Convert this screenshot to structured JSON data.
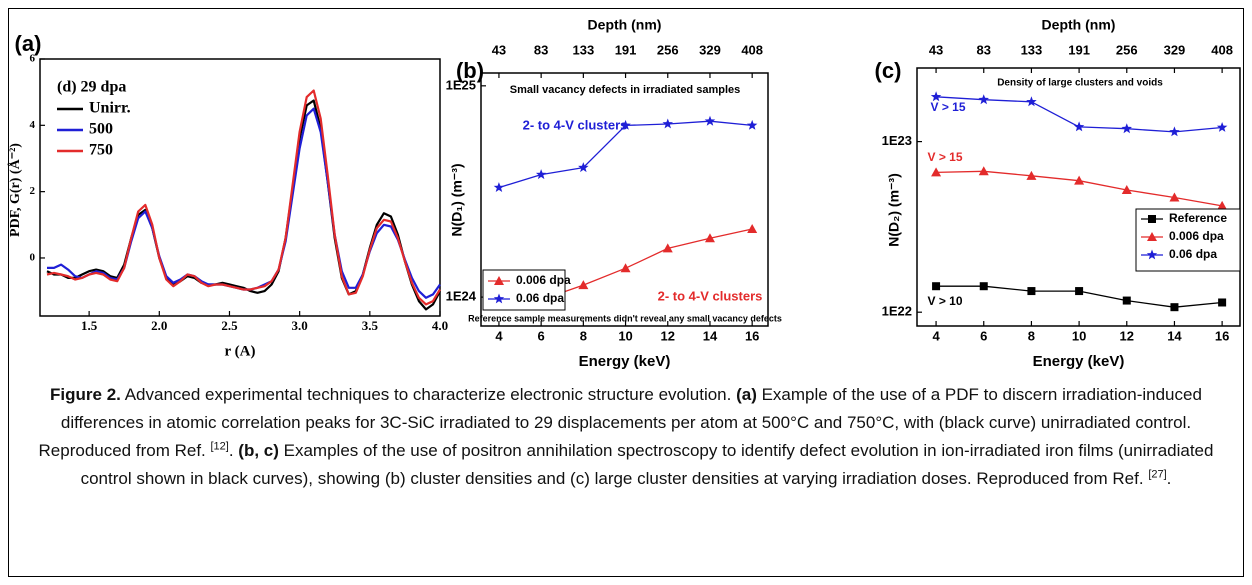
{
  "chart_data": [
    {
      "type": "line",
      "panel_label": "(a)",
      "xlabel": "r (A)",
      "ylabel": "PDF, G(r) (Å⁻²)",
      "legend_title": "(d) 29 dpa",
      "legend": "upper-left",
      "xlim": [
        1.15,
        4.0
      ],
      "ylim": [
        -1.75,
        6
      ],
      "xticks": [
        {
          "value": 1.5,
          "label": "1.5"
        },
        {
          "value": 2.0,
          "label": "2.0"
        },
        {
          "value": 2.5,
          "label": "2.5"
        },
        {
          "value": 3.0,
          "label": "3.0"
        },
        {
          "value": 3.5,
          "label": "3.5"
        },
        {
          "value": 4.0,
          "label": "4.0"
        }
      ],
      "yticks": [
        0,
        2,
        4,
        6
      ],
      "x": [
        1.2,
        1.25,
        1.3,
        1.35,
        1.4,
        1.45,
        1.5,
        1.55,
        1.6,
        1.65,
        1.7,
        1.75,
        1.8,
        1.85,
        1.9,
        1.95,
        2.0,
        2.05,
        2.1,
        2.15,
        2.2,
        2.25,
        2.3,
        2.35,
        2.4,
        2.45,
        2.5,
        2.55,
        2.6,
        2.65,
        2.7,
        2.75,
        2.8,
        2.85,
        2.9,
        2.95,
        3.0,
        3.05,
        3.1,
        3.15,
        3.2,
        3.25,
        3.3,
        3.35,
        3.4,
        3.45,
        3.5,
        3.55,
        3.6,
        3.65,
        3.7,
        3.75,
        3.8,
        3.85,
        3.9,
        3.95,
        4.0
      ],
      "series": [
        {
          "name": "Unirr.",
          "color": "#000000",
          "values": [
            -0.4,
            -0.5,
            -0.5,
            -0.6,
            -0.6,
            -0.5,
            -0.4,
            -0.35,
            -0.4,
            -0.55,
            -0.6,
            -0.2,
            0.6,
            1.3,
            1.45,
            0.9,
            0.0,
            -0.6,
            -0.8,
            -0.7,
            -0.55,
            -0.6,
            -0.75,
            -0.8,
            -0.8,
            -0.75,
            -0.8,
            -0.85,
            -0.9,
            -1.0,
            -1.05,
            -1.0,
            -0.8,
            -0.4,
            0.6,
            2.1,
            3.6,
            4.6,
            4.75,
            3.9,
            2.3,
            0.6,
            -0.6,
            -1.1,
            -1.0,
            -0.5,
            0.3,
            1.0,
            1.35,
            1.25,
            0.7,
            -0.1,
            -0.8,
            -1.3,
            -1.55,
            -1.4,
            -1.0
          ]
        },
        {
          "name": "500",
          "color": "#1f1fd6",
          "values": [
            -0.3,
            -0.3,
            -0.2,
            -0.35,
            -0.55,
            -0.6,
            -0.5,
            -0.4,
            -0.45,
            -0.6,
            -0.65,
            -0.3,
            0.5,
            1.2,
            1.4,
            0.9,
            0.05,
            -0.55,
            -0.75,
            -0.65,
            -0.5,
            -0.55,
            -0.7,
            -0.8,
            -0.8,
            -0.8,
            -0.85,
            -0.9,
            -0.95,
            -0.95,
            -0.9,
            -0.8,
            -0.7,
            -0.35,
            0.5,
            1.9,
            3.3,
            4.3,
            4.5,
            3.8,
            2.3,
            0.7,
            -0.4,
            -0.9,
            -0.9,
            -0.5,
            0.2,
            0.75,
            1.0,
            0.95,
            0.55,
            -0.05,
            -0.6,
            -1.0,
            -1.2,
            -1.1,
            -0.8
          ]
        },
        {
          "name": "750",
          "color": "#e32b2b",
          "values": [
            -0.5,
            -0.45,
            -0.5,
            -0.55,
            -0.65,
            -0.6,
            -0.5,
            -0.45,
            -0.5,
            -0.65,
            -0.7,
            -0.3,
            0.6,
            1.4,
            1.6,
            1.0,
            0.0,
            -0.65,
            -0.85,
            -0.7,
            -0.5,
            -0.55,
            -0.75,
            -0.85,
            -0.8,
            -0.8,
            -0.85,
            -0.9,
            -0.95,
            -0.95,
            -0.9,
            -0.85,
            -0.7,
            -0.35,
            0.6,
            2.2,
            3.8,
            4.85,
            5.05,
            4.2,
            2.5,
            0.7,
            -0.55,
            -1.1,
            -1.05,
            -0.55,
            0.25,
            0.9,
            1.15,
            1.1,
            0.6,
            -0.1,
            -0.75,
            -1.2,
            -1.4,
            -1.3,
            -0.95
          ]
        }
      ]
    },
    {
      "type": "line",
      "panel_label": "(b)",
      "xlabel": "Energy (keV)",
      "x2label": "Depth (nm)",
      "ylabel": "N(D₁) (m⁻³)",
      "log_y": true,
      "legend": "center-left",
      "xlim": [
        3.15,
        16.75
      ],
      "ylim": [
        7.3e+23,
        1.15e+25
      ],
      "xticks": [
        4,
        6,
        8,
        10,
        12,
        14,
        16
      ],
      "x2ticks": [
        {
          "value": 4,
          "label": "43"
        },
        {
          "value": 6,
          "label": "83"
        },
        {
          "value": 8,
          "label": "133"
        },
        {
          "value": 10,
          "label": "191"
        },
        {
          "value": 12,
          "label": "256"
        },
        {
          "value": 14,
          "label": "329"
        },
        {
          "value": 16,
          "label": "408"
        }
      ],
      "yticks": [
        {
          "value": 1e+24,
          "label": "1E24"
        },
        {
          "value": 1e+25,
          "label": "1E25"
        }
      ],
      "x": [
        4,
        6,
        8,
        10,
        12,
        14,
        16
      ],
      "series": [
        {
          "name": "0.006 dpa",
          "color": "#e32b2b",
          "marker": "triangle",
          "values": [
            1e+24,
            9.7e+23,
            1.14e+24,
            1.37e+24,
            1.7e+24,
            1.9e+24,
            2.1e+24
          ]
        },
        {
          "name": "0.06 dpa",
          "color": "#1f1fd6",
          "marker": "star",
          "values": [
            3.3e+24,
            3.8e+24,
            4.1e+24,
            6.5e+24,
            6.6e+24,
            6.8e+24,
            6.5e+24
          ]
        }
      ],
      "annotations": [
        {
          "text": "Small vacancy defects in irradiated samples",
          "color": "#000000"
        },
        {
          "text": "2- to 4-V clusters",
          "color": "#1f1fd6"
        },
        {
          "text": "2- to 4-V clusters",
          "color": "#e32b2b"
        },
        {
          "text": "Reference sample measurements didn't reveal any small vacancy defects",
          "color": "#000000"
        }
      ]
    },
    {
      "type": "line",
      "panel_label": "(c)",
      "xlabel": "Energy (keV)",
      "x2label": "Depth (nm)",
      "ylabel": "N(D₂) (m⁻³)",
      "log_y": true,
      "legend": "lower-right",
      "xlim": [
        3.2,
        16.75
      ],
      "ylim": [
        8.3e+21,
        2.7e+23
      ],
      "xticks": [
        4,
        6,
        8,
        10,
        12,
        14,
        16
      ],
      "x2ticks": [
        {
          "value": 4,
          "label": "43"
        },
        {
          "value": 6,
          "label": "83"
        },
        {
          "value": 8,
          "label": "133"
        },
        {
          "value": 10,
          "label": "191"
        },
        {
          "value": 12,
          "label": "256"
        },
        {
          "value": 14,
          "label": "329"
        },
        {
          "value": 16,
          "label": "408"
        }
      ],
      "yticks": [
        {
          "value": 1e+22,
          "label": "1E22"
        },
        {
          "value": 1e+23,
          "label": "1E23"
        }
      ],
      "x": [
        4,
        6,
        8,
        10,
        12,
        14,
        16
      ],
      "series": [
        {
          "name": "Reference",
          "color": "#000000",
          "marker": "square",
          "values": [
            1.42e+22,
            1.42e+22,
            1.33e+22,
            1.33e+22,
            1.17e+22,
            1.07e+22,
            1.14e+22
          ]
        },
        {
          "name": "0.006 dpa",
          "color": "#e32b2b",
          "marker": "triangle",
          "values": [
            6.6e+22,
            6.7e+22,
            6.3e+22,
            5.9e+22,
            5.2e+22,
            4.7e+22,
            4.2e+22
          ]
        },
        {
          "name": "0.06 dpa",
          "color": "#1f1fd6",
          "marker": "star",
          "values": [
            1.83e+23,
            1.76e+23,
            1.71e+23,
            1.22e+23,
            1.19e+23,
            1.14e+23,
            1.21e+23
          ]
        }
      ],
      "annotations": [
        {
          "text": "Density of large clusters and voids",
          "color": "#000000"
        },
        {
          "text": "V > 15",
          "color": "#1f1fd6"
        },
        {
          "text": "V > 15",
          "color": "#e32b2b"
        },
        {
          "text": "V > 10",
          "color": "#000000"
        }
      ]
    }
  ],
  "caption": [
    {
      "text": "Figure 2.",
      "style": "bold"
    },
    {
      "text": " Advanced experimental techniques to characterize electronic structure evolution. ",
      "style": "normal"
    },
    {
      "text": "(a)",
      "style": "bold"
    },
    {
      "text": " Example of the use of a PDF to discern irradiation-induced differences in atomic correlation peaks for 3C-SiC irradiated to 29 displacements per atom at 500°C and 750°C, with (black curve) unirradiated control. Reproduced from Ref. ",
      "style": "normal"
    },
    {
      "text": "[12]",
      "style": "sup"
    },
    {
      "text": ". ",
      "style": "normal"
    },
    {
      "text": "(b, c)",
      "style": "bold"
    },
    {
      "text": " Examples of the use of positron annihilation spectroscopy to identify defect evolution in ion-irradiated iron films (unirradiated control shown in black curves), showing (b) cluster densities and (c) large cluster densities at varying irradiation doses. Reproduced from Ref. ",
      "style": "normal"
    },
    {
      "text": "[27]",
      "style": "sup"
    },
    {
      "text": ".",
      "style": "normal"
    }
  ]
}
